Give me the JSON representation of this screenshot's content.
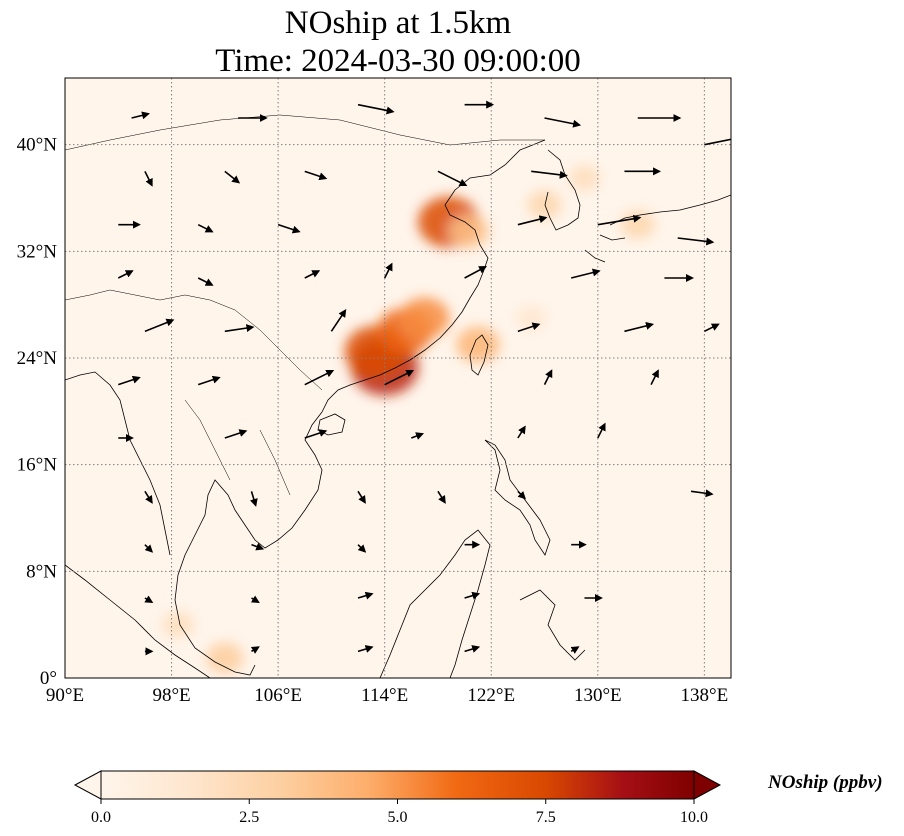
{
  "title": {
    "line1": "NOship at 1.5km",
    "line2": "Time: 2024-03-30 09:00:00"
  },
  "map": {
    "projection": "PlateCarree",
    "lon_range": [
      90,
      140
    ],
    "lat_range": [
      0,
      45
    ],
    "background_color": "#fff5eb",
    "coastline_color": "#000000",
    "gridline_style": "dotted",
    "gridline_color": "#808080",
    "x_ticks": [
      {
        "value": 90,
        "label": "90°E"
      },
      {
        "value": 98,
        "label": "98°E"
      },
      {
        "value": 106,
        "label": "106°E"
      },
      {
        "value": 114,
        "label": "114°E"
      },
      {
        "value": 122,
        "label": "122°E"
      },
      {
        "value": 130,
        "label": "130°E"
      },
      {
        "value": 138,
        "label": "138°E"
      }
    ],
    "y_ticks": [
      {
        "value": 0,
        "label": "0°"
      },
      {
        "value": 8,
        "label": "8°N"
      },
      {
        "value": 16,
        "label": "16°N"
      },
      {
        "value": 24,
        "label": "24°N"
      },
      {
        "value": 32,
        "label": "32°N"
      },
      {
        "value": 40,
        "label": "40°N"
      }
    ],
    "concentration_hotspots": [
      {
        "lon": 114.0,
        "lat": 23.3,
        "value": 8.0
      },
      {
        "lon": 113.3,
        "lat": 24.5,
        "value": 7.0
      },
      {
        "lon": 115.5,
        "lat": 26.0,
        "value": 6.0
      },
      {
        "lon": 117.0,
        "lat": 27.0,
        "value": 5.0
      },
      {
        "lon": 118.8,
        "lat": 34.2,
        "value": 7.0
      },
      {
        "lon": 120.3,
        "lat": 33.5,
        "value": 3.5
      },
      {
        "lon": 121.0,
        "lat": 25.0,
        "value": 4.0
      },
      {
        "lon": 126.0,
        "lat": 35.5,
        "value": 2.5
      },
      {
        "lon": 129.0,
        "lat": 37.5,
        "value": 2.0
      },
      {
        "lon": 133.0,
        "lat": 34.0,
        "value": 2.5
      },
      {
        "lon": 125.0,
        "lat": 27.0,
        "value": 1.5
      },
      {
        "lon": 98.5,
        "lat": 4.0,
        "value": 2.0
      },
      {
        "lon": 102.0,
        "lat": 1.5,
        "value": 3.0
      }
    ],
    "wind_vectors": [
      {
        "lon": 95,
        "lat": 42,
        "u": 1.2,
        "v": 0.3
      },
      {
        "lon": 103,
        "lat": 42,
        "u": 2.0,
        "v": 0.0
      },
      {
        "lon": 112,
        "lat": 43,
        "u": 2.5,
        "v": -0.5
      },
      {
        "lon": 120,
        "lat": 43,
        "u": 2.0,
        "v": 0.0
      },
      {
        "lon": 126,
        "lat": 42,
        "u": 2.5,
        "v": -0.5
      },
      {
        "lon": 133,
        "lat": 42,
        "u": 3.0,
        "v": 0.0
      },
      {
        "lon": 138,
        "lat": 40,
        "u": 2.5,
        "v": 0.5
      },
      {
        "lon": 96,
        "lat": 38,
        "u": 0.5,
        "v": -1.0
      },
      {
        "lon": 102,
        "lat": 38,
        "u": 1.0,
        "v": -0.8
      },
      {
        "lon": 108,
        "lat": 38,
        "u": 1.5,
        "v": -0.5
      },
      {
        "lon": 118,
        "lat": 38,
        "u": 2.0,
        "v": -1.0
      },
      {
        "lon": 125,
        "lat": 38,
        "u": 2.5,
        "v": -0.3
      },
      {
        "lon": 132,
        "lat": 38,
        "u": 2.5,
        "v": 0.0
      },
      {
        "lon": 94,
        "lat": 34,
        "u": 1.5,
        "v": 0.0
      },
      {
        "lon": 100,
        "lat": 34,
        "u": 1.0,
        "v": -0.5
      },
      {
        "lon": 106,
        "lat": 34,
        "u": 1.5,
        "v": -0.5
      },
      {
        "lon": 124,
        "lat": 34,
        "u": 2.0,
        "v": 0.5
      },
      {
        "lon": 130,
        "lat": 34,
        "u": 3.0,
        "v": 0.5
      },
      {
        "lon": 136,
        "lat": 33,
        "u": 2.5,
        "v": -0.3
      },
      {
        "lon": 94,
        "lat": 30,
        "u": 1.0,
        "v": 0.5
      },
      {
        "lon": 100,
        "lat": 30,
        "u": 1.0,
        "v": -0.5
      },
      {
        "lon": 108,
        "lat": 30,
        "u": 1.0,
        "v": 0.5
      },
      {
        "lon": 114,
        "lat": 30,
        "u": 0.5,
        "v": 1.0
      },
      {
        "lon": 120,
        "lat": 30,
        "u": 1.5,
        "v": 0.8
      },
      {
        "lon": 128,
        "lat": 30,
        "u": 2.0,
        "v": 0.5
      },
      {
        "lon": 135,
        "lat": 30,
        "u": 2.0,
        "v": 0.0
      },
      {
        "lon": 96,
        "lat": 26,
        "u": 2.0,
        "v": 0.8
      },
      {
        "lon": 102,
        "lat": 26,
        "u": 2.0,
        "v": 0.3
      },
      {
        "lon": 110,
        "lat": 26,
        "u": 1.0,
        "v": 1.5
      },
      {
        "lon": 124,
        "lat": 26,
        "u": 1.5,
        "v": 0.5
      },
      {
        "lon": 132,
        "lat": 26,
        "u": 2.0,
        "v": 0.5
      },
      {
        "lon": 138,
        "lat": 26,
        "u": 1.0,
        "v": 0.5
      },
      {
        "lon": 94,
        "lat": 22,
        "u": 1.5,
        "v": 0.5
      },
      {
        "lon": 100,
        "lat": 22,
        "u": 1.5,
        "v": 0.5
      },
      {
        "lon": 108,
        "lat": 22,
        "u": 2.0,
        "v": 1.0
      },
      {
        "lon": 114,
        "lat": 22,
        "u": 2.0,
        "v": 1.0
      },
      {
        "lon": 126,
        "lat": 22,
        "u": 0.5,
        "v": 1.0
      },
      {
        "lon": 134,
        "lat": 22,
        "u": 0.5,
        "v": 1.0
      },
      {
        "lon": 94,
        "lat": 18,
        "u": 1.0,
        "v": 0.0
      },
      {
        "lon": 102,
        "lat": 18,
        "u": 1.5,
        "v": 0.5
      },
      {
        "lon": 108,
        "lat": 18,
        "u": 1.5,
        "v": 0.5
      },
      {
        "lon": 116,
        "lat": 18,
        "u": 0.8,
        "v": 0.3
      },
      {
        "lon": 124,
        "lat": 18,
        "u": 0.5,
        "v": 0.8
      },
      {
        "lon": 130,
        "lat": 18,
        "u": 0.5,
        "v": 1.0
      },
      {
        "lon": 137,
        "lat": 14,
        "u": 1.5,
        "v": -0.2
      },
      {
        "lon": 96,
        "lat": 14,
        "u": 0.5,
        "v": -0.8
      },
      {
        "lon": 104,
        "lat": 14,
        "u": 0.3,
        "v": -1.0
      },
      {
        "lon": 112,
        "lat": 14,
        "u": 0.5,
        "v": -0.8
      },
      {
        "lon": 118,
        "lat": 14,
        "u": 0.5,
        "v": -0.8
      },
      {
        "lon": 124,
        "lat": 14,
        "u": 0.5,
        "v": -0.5
      },
      {
        "lon": 96,
        "lat": 10,
        "u": 0.5,
        "v": -0.5
      },
      {
        "lon": 104,
        "lat": 10,
        "u": 0.8,
        "v": -0.3
      },
      {
        "lon": 112,
        "lat": 10,
        "u": 0.5,
        "v": -0.5
      },
      {
        "lon": 120,
        "lat": 10,
        "u": 1.0,
        "v": 0.0
      },
      {
        "lon": 128,
        "lat": 10,
        "u": 1.0,
        "v": 0.0
      },
      {
        "lon": 96,
        "lat": 6,
        "u": 0.5,
        "v": -0.3
      },
      {
        "lon": 104,
        "lat": 6,
        "u": 0.5,
        "v": -0.3
      },
      {
        "lon": 112,
        "lat": 6,
        "u": 1.0,
        "v": 0.3
      },
      {
        "lon": 120,
        "lat": 6,
        "u": 1.0,
        "v": 0.3
      },
      {
        "lon": 129,
        "lat": 6,
        "u": 1.2,
        "v": 0.0
      },
      {
        "lon": 96,
        "lat": 2,
        "u": 0.5,
        "v": 0.0
      },
      {
        "lon": 104,
        "lat": 2,
        "u": 0.5,
        "v": 0.3
      },
      {
        "lon": 112,
        "lat": 2,
        "u": 1.0,
        "v": 0.3
      },
      {
        "lon": 120,
        "lat": 2,
        "u": 1.0,
        "v": 0.3
      },
      {
        "lon": 128,
        "lat": 2,
        "u": 0.5,
        "v": 0.3
      }
    ]
  },
  "colorbar": {
    "label": "NOship (ppbv)",
    "min": 0.0,
    "max": 10.0,
    "extend": "both",
    "colormap": "OrRd",
    "colors": [
      "#fff5eb",
      "#fee6ce",
      "#fdd0a2",
      "#fdae6b",
      "#f16913",
      "#d94801",
      "#a50f15",
      "#7f0000"
    ],
    "ticks": [
      {
        "value": 0.0,
        "label": "0.0"
      },
      {
        "value": 2.5,
        "label": "2.5"
      },
      {
        "value": 5.0,
        "label": "5.0"
      },
      {
        "value": 7.5,
        "label": "7.5"
      },
      {
        "value": 10.0,
        "label": "10.0"
      }
    ]
  }
}
